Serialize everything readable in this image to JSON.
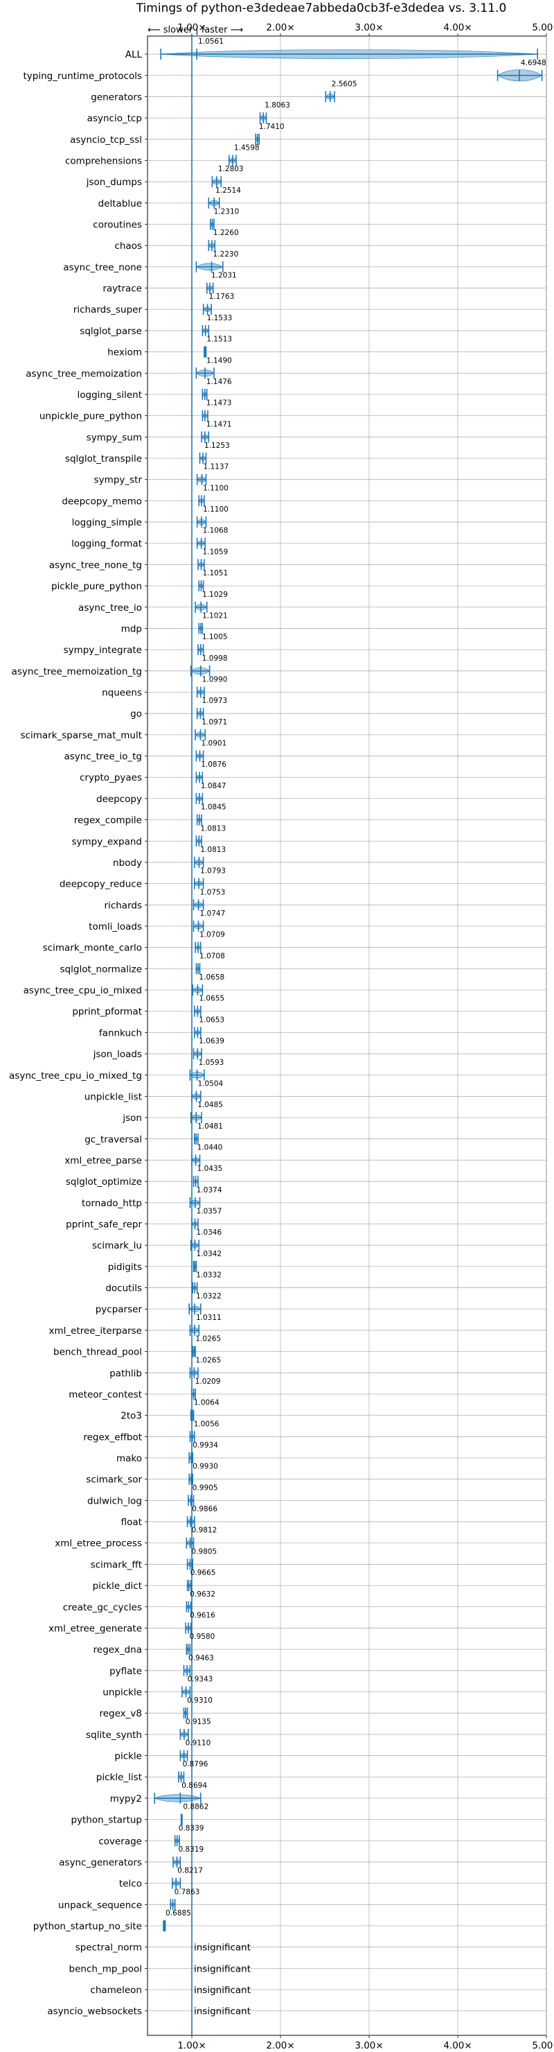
{
  "chart_data": {
    "type": "violin",
    "title": "Timings of python-e3dedeae7abbeda0cb3f-e3dedea vs. 3.11.0",
    "direction_label": "⟵ slower | faster ⟶",
    "xlim": [
      0.5,
      5.0
    ],
    "xticks": [
      {
        "v": 1,
        "label": "1.00×"
      },
      {
        "v": 2,
        "label": "2.00×"
      },
      {
        "v": 3,
        "label": "3.00×"
      },
      {
        "v": 4,
        "label": "4.00×"
      },
      {
        "v": 5,
        "label": "5.00×"
      }
    ],
    "reference_line": 1.0,
    "grid": true,
    "accent_color": "#1f77b4",
    "violin_color": "#8fbbd9",
    "benchmarks": [
      {
        "name": "ALL",
        "value": 1.0561,
        "label": "1.0561",
        "min": 0.65,
        "max": 4.9,
        "w": 0.14
      },
      {
        "name": "typing_runtime_protocols",
        "value": 4.6948,
        "label": "4.6948",
        "min": 4.45,
        "max": 4.95,
        "w": 0.2
      },
      {
        "name": "generators",
        "value": 2.5605,
        "label": "2.5605",
        "min": 2.51,
        "max": 2.61,
        "w": 0.05
      },
      {
        "name": "asyncio_tcp",
        "value": 1.8063,
        "label": "1.8063",
        "min": 1.77,
        "max": 1.84,
        "w": 0.04
      },
      {
        "name": "asyncio_tcp_ssl",
        "value": 1.741,
        "label": "1.7410",
        "min": 1.72,
        "max": 1.76,
        "w": 0.03
      },
      {
        "name": "comprehensions",
        "value": 1.4598,
        "label": "1.4598",
        "min": 1.42,
        "max": 1.5,
        "w": 0.04
      },
      {
        "name": "json_dumps",
        "value": 1.2803,
        "label": "1.2803",
        "min": 1.23,
        "max": 1.33,
        "w": 0.05
      },
      {
        "name": "deltablue",
        "value": 1.2514,
        "label": "1.2514",
        "min": 1.19,
        "max": 1.31,
        "w": 0.05
      },
      {
        "name": "coroutines",
        "value": 1.231,
        "label": "1.2310",
        "min": 1.21,
        "max": 1.25,
        "w": 0.02
      },
      {
        "name": "chaos",
        "value": 1.226,
        "label": "1.2260",
        "min": 1.19,
        "max": 1.26,
        "w": 0.04
      },
      {
        "name": "async_tree_none",
        "value": 1.223,
        "label": "1.2230",
        "min": 1.05,
        "max": 1.35,
        "w": 0.09
      },
      {
        "name": "raytrace",
        "value": 1.2031,
        "label": "1.2031",
        "min": 1.17,
        "max": 1.24,
        "w": 0.03
      },
      {
        "name": "richards_super",
        "value": 1.1763,
        "label": "1.1763",
        "min": 1.13,
        "max": 1.22,
        "w": 0.04
      },
      {
        "name": "sqlglot_parse",
        "value": 1.1533,
        "label": "1.1533",
        "min": 1.12,
        "max": 1.19,
        "w": 0.03
      },
      {
        "name": "hexiom",
        "value": 1.1513,
        "label": "1.1513",
        "min": 1.14,
        "max": 1.16,
        "w": 0.01
      },
      {
        "name": "async_tree_memoization",
        "value": 1.149,
        "label": "1.1490",
        "min": 1.05,
        "max": 1.25,
        "w": 0.08
      },
      {
        "name": "logging_silent",
        "value": 1.1476,
        "label": "1.1476",
        "min": 1.12,
        "max": 1.17,
        "w": 0.03
      },
      {
        "name": "unpickle_pure_python",
        "value": 1.1473,
        "label": "1.1473",
        "min": 1.12,
        "max": 1.18,
        "w": 0.03
      },
      {
        "name": "sympy_sum",
        "value": 1.1471,
        "label": "1.1471",
        "min": 1.11,
        "max": 1.19,
        "w": 0.04
      },
      {
        "name": "sqlglot_transpile",
        "value": 1.1253,
        "label": "1.1253",
        "min": 1.09,
        "max": 1.16,
        "w": 0.03
      },
      {
        "name": "sympy_str",
        "value": 1.1137,
        "label": "1.1137",
        "min": 1.06,
        "max": 1.16,
        "w": 0.05
      },
      {
        "name": "deepcopy_memo",
        "value": 1.11,
        "label": "1.1100",
        "min": 1.08,
        "max": 1.14,
        "w": 0.03
      },
      {
        "name": "logging_simple",
        "value": 1.11,
        "label": "1.1100",
        "min": 1.06,
        "max": 1.16,
        "w": 0.05
      },
      {
        "name": "logging_format",
        "value": 1.1068,
        "label": "1.1068",
        "min": 1.06,
        "max": 1.15,
        "w": 0.04
      },
      {
        "name": "async_tree_none_tg",
        "value": 1.1059,
        "label": "1.1059",
        "min": 1.07,
        "max": 1.14,
        "w": 0.03
      },
      {
        "name": "pickle_pure_python",
        "value": 1.1051,
        "label": "1.1051",
        "min": 1.08,
        "max": 1.13,
        "w": 0.02
      },
      {
        "name": "async_tree_io",
        "value": 1.1029,
        "label": "1.1029",
        "min": 1.04,
        "max": 1.17,
        "w": 0.06
      },
      {
        "name": "mdp",
        "value": 1.1021,
        "label": "1.1021",
        "min": 1.08,
        "max": 1.12,
        "w": 0.02
      },
      {
        "name": "sympy_integrate",
        "value": 1.1005,
        "label": "1.1005",
        "min": 1.07,
        "max": 1.13,
        "w": 0.03
      },
      {
        "name": "async_tree_memoization_tg",
        "value": 1.0998,
        "label": "1.0998",
        "min": 0.99,
        "max": 1.2,
        "w": 0.09
      },
      {
        "name": "nqueens",
        "value": 1.099,
        "label": "1.0990",
        "min": 1.06,
        "max": 1.14,
        "w": 0.04
      },
      {
        "name": "go",
        "value": 1.0973,
        "label": "1.0973",
        "min": 1.06,
        "max": 1.13,
        "w": 0.03
      },
      {
        "name": "scimark_sparse_mat_mult",
        "value": 1.0971,
        "label": "1.0971",
        "min": 1.04,
        "max": 1.15,
        "w": 0.05
      },
      {
        "name": "async_tree_io_tg",
        "value": 1.0901,
        "label": "1.0901",
        "min": 1.05,
        "max": 1.13,
        "w": 0.03
      },
      {
        "name": "crypto_pyaes",
        "value": 1.0876,
        "label": "1.0876",
        "min": 1.05,
        "max": 1.12,
        "w": 0.03
      },
      {
        "name": "deepcopy",
        "value": 1.0847,
        "label": "1.0847",
        "min": 1.05,
        "max": 1.12,
        "w": 0.03
      },
      {
        "name": "regex_compile",
        "value": 1.0845,
        "label": "1.0845",
        "min": 1.06,
        "max": 1.11,
        "w": 0.02
      },
      {
        "name": "sympy_expand",
        "value": 1.0813,
        "label": "1.0813",
        "min": 1.05,
        "max": 1.11,
        "w": 0.03
      },
      {
        "name": "nbody",
        "value": 1.0813,
        "label": "1.0813",
        "min": 1.03,
        "max": 1.13,
        "w": 0.05
      },
      {
        "name": "deepcopy_reduce",
        "value": 1.0793,
        "label": "1.0793",
        "min": 1.03,
        "max": 1.13,
        "w": 0.04
      },
      {
        "name": "richards",
        "value": 1.0753,
        "label": "1.0753",
        "min": 1.02,
        "max": 1.13,
        "w": 0.05
      },
      {
        "name": "tomli_loads",
        "value": 1.0747,
        "label": "1.0747",
        "min": 1.02,
        "max": 1.13,
        "w": 0.05
      },
      {
        "name": "scimark_monte_carlo",
        "value": 1.0709,
        "label": "1.0709",
        "min": 1.04,
        "max": 1.1,
        "w": 0.03
      },
      {
        "name": "sqlglot_normalize",
        "value": 1.0708,
        "label": "1.0708",
        "min": 1.05,
        "max": 1.09,
        "w": 0.02
      },
      {
        "name": "async_tree_cpu_io_mixed",
        "value": 1.0658,
        "label": "1.0658",
        "min": 1.01,
        "max": 1.12,
        "w": 0.05
      },
      {
        "name": "pprint_pformat",
        "value": 1.0655,
        "label": "1.0655",
        "min": 1.03,
        "max": 1.1,
        "w": 0.03
      },
      {
        "name": "fannkuch",
        "value": 1.0653,
        "label": "1.0653",
        "min": 1.03,
        "max": 1.1,
        "w": 0.03
      },
      {
        "name": "json_loads",
        "value": 1.0639,
        "label": "1.0639",
        "min": 1.02,
        "max": 1.11,
        "w": 0.04
      },
      {
        "name": "async_tree_cpu_io_mixed_tg",
        "value": 1.0593,
        "label": "1.0593",
        "min": 0.98,
        "max": 1.14,
        "w": 0.07
      },
      {
        "name": "unpickle_list",
        "value": 1.0504,
        "label": "1.0504",
        "min": 1.0,
        "max": 1.1,
        "w": 0.05
      },
      {
        "name": "json",
        "value": 1.0485,
        "label": "1.0485",
        "min": 0.99,
        "max": 1.11,
        "w": 0.06
      },
      {
        "name": "gc_traversal",
        "value": 1.0481,
        "label": "1.0481",
        "min": 1.03,
        "max": 1.07,
        "w": 0.02
      },
      {
        "name": "xml_etree_parse",
        "value": 1.044,
        "label": "1.0440",
        "min": 1.0,
        "max": 1.09,
        "w": 0.04
      },
      {
        "name": "sqlglot_optimize",
        "value": 1.0435,
        "label": "1.0435",
        "min": 1.02,
        "max": 1.07,
        "w": 0.02
      },
      {
        "name": "tornado_http",
        "value": 1.0374,
        "label": "1.0374",
        "min": 0.98,
        "max": 1.09,
        "w": 0.05
      },
      {
        "name": "pprint_safe_repr",
        "value": 1.0357,
        "label": "1.0357",
        "min": 1.0,
        "max": 1.07,
        "w": 0.03
      },
      {
        "name": "scimark_lu",
        "value": 1.0346,
        "label": "1.0346",
        "min": 0.99,
        "max": 1.08,
        "w": 0.04
      },
      {
        "name": "pidigits",
        "value": 1.0342,
        "label": "1.0342",
        "min": 1.02,
        "max": 1.05,
        "w": 0.01
      },
      {
        "name": "docutils",
        "value": 1.0332,
        "label": "1.0332",
        "min": 1.01,
        "max": 1.06,
        "w": 0.02
      },
      {
        "name": "pycparser",
        "value": 1.0322,
        "label": "1.0322",
        "min": 0.97,
        "max": 1.1,
        "w": 0.06
      },
      {
        "name": "xml_etree_iterparse",
        "value": 1.0311,
        "label": "1.0311",
        "min": 0.98,
        "max": 1.08,
        "w": 0.05
      },
      {
        "name": "bench_thread_pool",
        "value": 1.0265,
        "label": "1.0265",
        "min": 1.01,
        "max": 1.04,
        "w": 0.01
      },
      {
        "name": "pathlib",
        "value": 1.0265,
        "label": "1.0265",
        "min": 0.98,
        "max": 1.07,
        "w": 0.04
      },
      {
        "name": "meteor_contest",
        "value": 1.0209,
        "label": "1.0209",
        "min": 1.0,
        "max": 1.04,
        "w": 0.02
      },
      {
        "name": "2to3",
        "value": 1.0064,
        "label": "1.0064",
        "min": 0.99,
        "max": 1.02,
        "w": 0.01
      },
      {
        "name": "regex_effbot",
        "value": 1.0056,
        "label": "1.0056",
        "min": 0.98,
        "max": 1.03,
        "w": 0.02
      },
      {
        "name": "mako",
        "value": 0.9934,
        "label": "0.9934",
        "min": 0.97,
        "max": 1.01,
        "w": 0.02
      },
      {
        "name": "scimark_sor",
        "value": 0.993,
        "label": "0.9930",
        "min": 0.97,
        "max": 1.01,
        "w": 0.02
      },
      {
        "name": "dulwich_log",
        "value": 0.9905,
        "label": "0.9905",
        "min": 0.96,
        "max": 1.02,
        "w": 0.03
      },
      {
        "name": "float",
        "value": 0.9866,
        "label": "0.9866",
        "min": 0.95,
        "max": 1.03,
        "w": 0.04
      },
      {
        "name": "xml_etree_process",
        "value": 0.9812,
        "label": "0.9812",
        "min": 0.94,
        "max": 1.02,
        "w": 0.04
      },
      {
        "name": "scimark_fft",
        "value": 0.9805,
        "label": "0.9805",
        "min": 0.95,
        "max": 1.01,
        "w": 0.03
      },
      {
        "name": "pickle_dict",
        "value": 0.9665,
        "label": "0.9665",
        "min": 0.95,
        "max": 0.99,
        "w": 0.02
      },
      {
        "name": "create_gc_cycles",
        "value": 0.9632,
        "label": "0.9632",
        "min": 0.94,
        "max": 0.99,
        "w": 0.02
      },
      {
        "name": "xml_etree_generate",
        "value": 0.9616,
        "label": "0.9616",
        "min": 0.93,
        "max": 0.99,
        "w": 0.03
      },
      {
        "name": "regex_dna",
        "value": 0.958,
        "label": "0.9580",
        "min": 0.94,
        "max": 0.98,
        "w": 0.02
      },
      {
        "name": "pyflate",
        "value": 0.9463,
        "label": "0.9463",
        "min": 0.91,
        "max": 0.98,
        "w": 0.03
      },
      {
        "name": "unpickle",
        "value": 0.9343,
        "label": "0.9343",
        "min": 0.89,
        "max": 0.98,
        "w": 0.04
      },
      {
        "name": "regex_v8",
        "value": 0.931,
        "label": "0.9310",
        "min": 0.91,
        "max": 0.95,
        "w": 0.02
      },
      {
        "name": "sqlite_synth",
        "value": 0.9135,
        "label": "0.9135",
        "min": 0.87,
        "max": 0.96,
        "w": 0.04
      },
      {
        "name": "pickle",
        "value": 0.911,
        "label": "0.9110",
        "min": 0.87,
        "max": 0.95,
        "w": 0.04
      },
      {
        "name": "pickle_list",
        "value": 0.8796,
        "label": "0.8796",
        "min": 0.85,
        "max": 0.91,
        "w": 0.03
      },
      {
        "name": "mypy2",
        "value": 0.8694,
        "label": "0.8694",
        "min": 0.58,
        "max": 1.1,
        "w": 0.1
      },
      {
        "name": "python_startup",
        "value": 0.8862,
        "label": "0.8862",
        "min": 0.88,
        "max": 0.89,
        "w": 0.005
      },
      {
        "name": "coverage",
        "value": 0.8339,
        "label": "0.8339",
        "min": 0.81,
        "max": 0.86,
        "w": 0.02
      },
      {
        "name": "async_generators",
        "value": 0.8319,
        "label": "0.8319",
        "min": 0.79,
        "max": 0.87,
        "w": 0.04
      },
      {
        "name": "telco",
        "value": 0.8217,
        "label": "0.8217",
        "min": 0.78,
        "max": 0.87,
        "w": 0.04
      },
      {
        "name": "unpack_sequence",
        "value": 0.7863,
        "label": "0.7863",
        "min": 0.76,
        "max": 0.81,
        "w": 0.02
      },
      {
        "name": "python_startup_no_site",
        "value": 0.6885,
        "label": "0.6885",
        "min": 0.68,
        "max": 0.7,
        "w": 0.005
      },
      {
        "name": "spectral_norm",
        "insignificant": true,
        "label": "insignificant"
      },
      {
        "name": "bench_mp_pool",
        "insignificant": true,
        "label": "insignificant"
      },
      {
        "name": "chameleon",
        "insignificant": true,
        "label": "insignificant"
      },
      {
        "name": "asyncio_websockets",
        "insignificant": true,
        "label": "insignificant"
      }
    ]
  }
}
